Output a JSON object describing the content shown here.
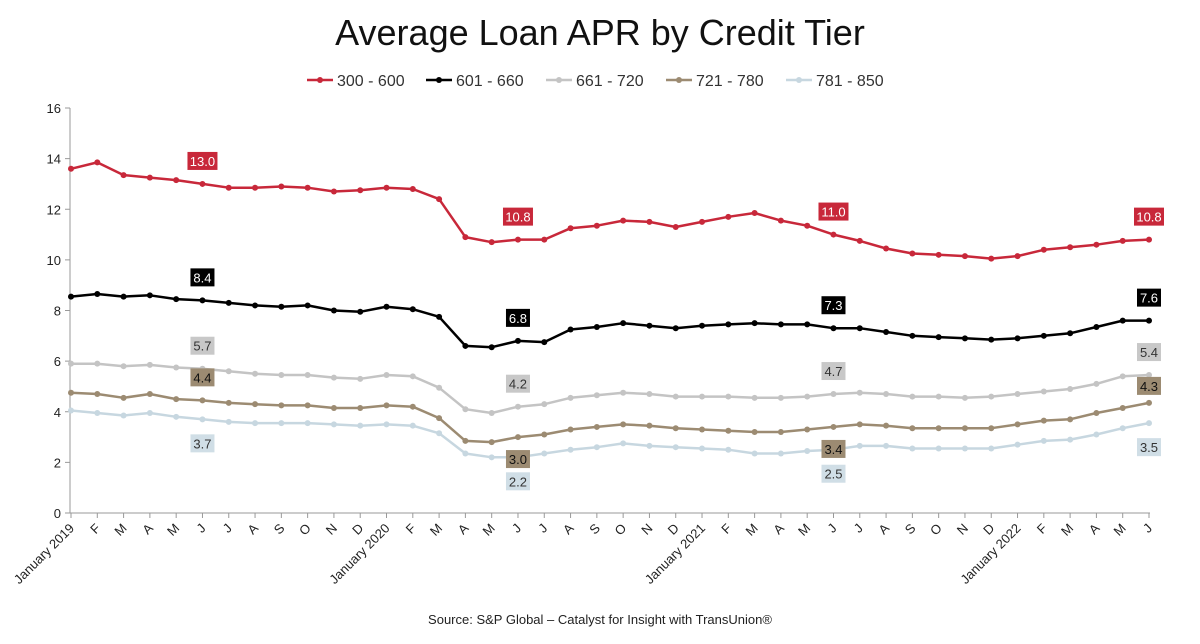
{
  "source": "Source: S&P Global – Catalyst for Insight with TransUnion®",
  "chart_data": {
    "type": "line",
    "title": "Average Loan APR by Credit Tier",
    "xlabel": "",
    "ylabel": "",
    "ylim": [
      0,
      16
    ],
    "yticks": [
      0,
      2,
      4,
      6,
      8,
      10,
      12,
      14,
      16
    ],
    "grid": false,
    "legend_position": "top",
    "categories": [
      "January 2019",
      "F",
      "M",
      "A",
      "M",
      "J",
      "J",
      "A",
      "S",
      "O",
      "N",
      "D",
      "January 2020",
      "F",
      "M",
      "A",
      "M",
      "J",
      "J",
      "A",
      "S",
      "O",
      "N",
      "D",
      "January 2021",
      "F",
      "M",
      "A",
      "M",
      "J",
      "J",
      "A",
      "S",
      "O",
      "N",
      "D",
      "January 2022",
      "F",
      "M",
      "A",
      "M",
      "J"
    ],
    "series": [
      {
        "name": "300 - 600",
        "color": "#c8283a",
        "values": [
          13.6,
          13.85,
          13.35,
          13.25,
          13.15,
          13.0,
          12.85,
          12.85,
          12.9,
          12.85,
          12.7,
          12.75,
          12.85,
          12.8,
          12.4,
          10.9,
          10.7,
          10.8,
          10.8,
          11.25,
          11.35,
          11.55,
          11.5,
          11.3,
          11.5,
          11.7,
          11.85,
          11.55,
          11.35,
          11.0,
          10.75,
          10.45,
          10.25,
          10.2,
          10.15,
          10.05,
          10.15,
          10.4,
          10.5,
          10.6,
          10.75,
          10.8
        ],
        "labels": [
          {
            "index": 5,
            "text": "13.0"
          },
          {
            "index": 17,
            "text": "10.8"
          },
          {
            "index": 29,
            "text": "11.0"
          },
          {
            "index": 41,
            "text": "10.8"
          }
        ],
        "label_fill": "#c8283a",
        "label_text_color": "#ffffff"
      },
      {
        "name": "601 - 660",
        "color": "#000000",
        "values": [
          8.55,
          8.65,
          8.55,
          8.6,
          8.45,
          8.4,
          8.3,
          8.2,
          8.15,
          8.2,
          8.0,
          7.95,
          8.15,
          8.05,
          7.75,
          6.6,
          6.55,
          6.8,
          6.75,
          7.25,
          7.35,
          7.5,
          7.4,
          7.3,
          7.4,
          7.45,
          7.5,
          7.45,
          7.45,
          7.3,
          7.3,
          7.15,
          7.0,
          6.95,
          6.9,
          6.85,
          6.9,
          7.0,
          7.1,
          7.35,
          7.6,
          7.6
        ],
        "labels": [
          {
            "index": 5,
            "text": "8.4"
          },
          {
            "index": 17,
            "text": "6.8"
          },
          {
            "index": 29,
            "text": "7.3"
          },
          {
            "index": 41,
            "text": "7.6"
          }
        ],
        "label_fill": "#000000",
        "label_text_color": "#ffffff"
      },
      {
        "name": "661 - 720",
        "color": "#c4c4c4",
        "values": [
          5.9,
          5.9,
          5.8,
          5.85,
          5.75,
          5.7,
          5.6,
          5.5,
          5.45,
          5.45,
          5.35,
          5.3,
          5.45,
          5.4,
          4.95,
          4.1,
          3.95,
          4.2,
          4.3,
          4.55,
          4.65,
          4.75,
          4.7,
          4.6,
          4.6,
          4.6,
          4.55,
          4.55,
          4.6,
          4.7,
          4.75,
          4.7,
          4.6,
          4.6,
          4.55,
          4.6,
          4.7,
          4.8,
          4.9,
          5.1,
          5.4,
          5.45
        ],
        "labels": [
          {
            "index": 5,
            "text": "5.7"
          },
          {
            "index": 17,
            "text": "4.2"
          },
          {
            "index": 29,
            "text": "4.7"
          },
          {
            "index": 41,
            "text": "5.4"
          }
        ],
        "label_fill": "#c8c8c8",
        "label_text_color": "#333333"
      },
      {
        "name": "721 - 780",
        "color": "#9c8b72",
        "values": [
          4.75,
          4.7,
          4.55,
          4.7,
          4.5,
          4.45,
          4.35,
          4.3,
          4.25,
          4.25,
          4.15,
          4.15,
          4.25,
          4.2,
          3.75,
          2.85,
          2.8,
          3.0,
          3.1,
          3.3,
          3.4,
          3.5,
          3.45,
          3.35,
          3.3,
          3.25,
          3.2,
          3.2,
          3.3,
          3.4,
          3.5,
          3.45,
          3.35,
          3.35,
          3.35,
          3.35,
          3.5,
          3.65,
          3.7,
          3.95,
          4.15,
          4.35
        ],
        "labels": [
          {
            "index": 5,
            "text": "4.4"
          },
          {
            "index": 17,
            "text": "3.0"
          },
          {
            "index": 29,
            "text": "3.4"
          },
          {
            "index": 41,
            "text": "4.3"
          }
        ],
        "label_fill": "#9c8b72",
        "label_text_color": "#111111"
      },
      {
        "name": "781 - 850",
        "color": "#c7d7e0",
        "values": [
          4.05,
          3.95,
          3.85,
          3.95,
          3.8,
          3.7,
          3.6,
          3.55,
          3.55,
          3.55,
          3.5,
          3.45,
          3.5,
          3.45,
          3.15,
          2.35,
          2.2,
          2.2,
          2.35,
          2.5,
          2.6,
          2.75,
          2.65,
          2.6,
          2.55,
          2.5,
          2.35,
          2.35,
          2.45,
          2.5,
          2.65,
          2.65,
          2.55,
          2.55,
          2.55,
          2.55,
          2.7,
          2.85,
          2.9,
          3.1,
          3.35,
          3.55
        ],
        "labels": [
          {
            "index": 5,
            "text": "3.7"
          },
          {
            "index": 17,
            "text": "2.2"
          },
          {
            "index": 29,
            "text": "2.5"
          },
          {
            "index": 41,
            "text": "3.5"
          }
        ],
        "label_fill": "#d0dee6",
        "label_text_color": "#333333"
      }
    ]
  }
}
